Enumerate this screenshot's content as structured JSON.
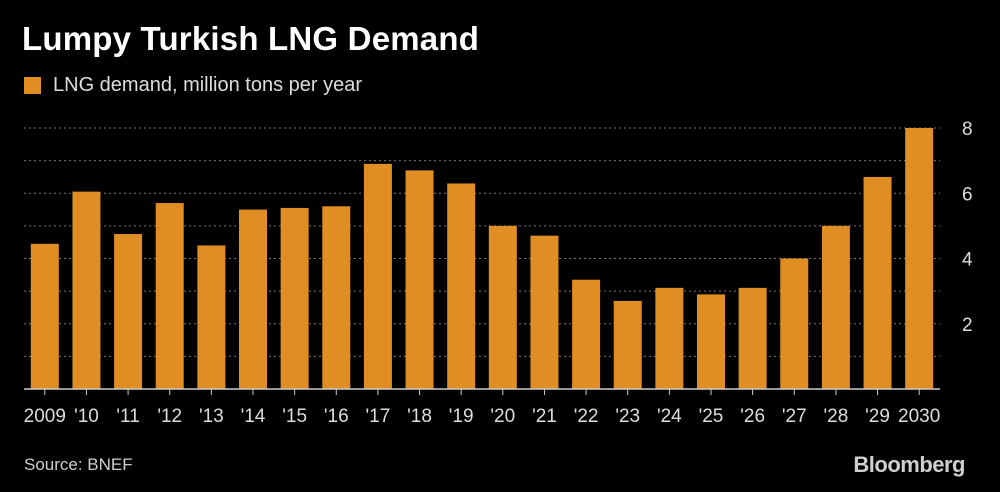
{
  "title": "Lumpy Turkish LNG Demand",
  "legend": {
    "label": "LNG demand, million tons per year",
    "color": "#e08e24"
  },
  "source": "Source: BNEF",
  "brand": "Bloomberg",
  "chart_data": {
    "type": "bar",
    "title": "Lumpy Turkish LNG Demand",
    "categories": [
      "2009",
      "'10",
      "'11",
      "'12",
      "'13",
      "'14",
      "'15",
      "'16",
      "'17",
      "'18",
      "'19",
      "'20",
      "'21",
      "'22",
      "'23",
      "'24",
      "'25",
      "'26",
      "'27",
      "'28",
      "'29",
      "2030"
    ],
    "series": [
      {
        "name": "LNG demand, million tons per year",
        "color": "#e08e24",
        "values": [
          4.45,
          6.05,
          4.75,
          5.7,
          4.4,
          5.5,
          5.55,
          5.6,
          6.9,
          6.7,
          6.3,
          5.0,
          4.7,
          3.35,
          2.7,
          3.1,
          2.9,
          3.1,
          4.0,
          5.0,
          6.5,
          8.0
        ]
      }
    ],
    "ylim": [
      0,
      8
    ],
    "yticks": [
      2,
      4,
      6,
      8
    ],
    "grid": true,
    "grid_color": "#777777",
    "axis_position": "right",
    "xlabel": "",
    "ylabel": ""
  }
}
